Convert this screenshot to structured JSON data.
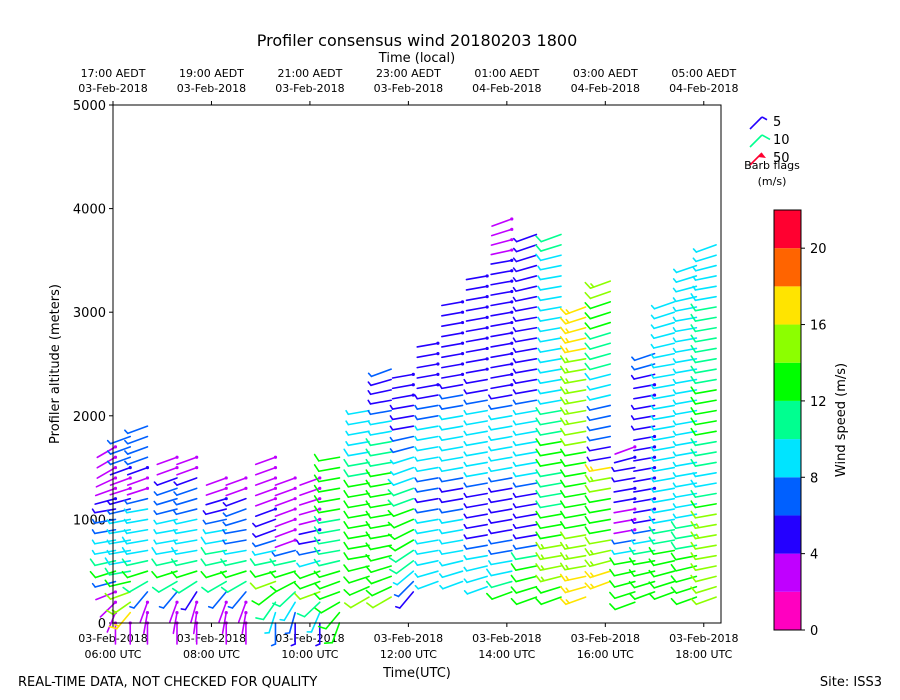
{
  "chart_data": {
    "type": "wind-barb",
    "title": "Profiler consensus wind 20180203 1800",
    "top_axis_label": "Time (local)",
    "top_ticks": [
      {
        "t": 6,
        "line1": "17:00 AEDT",
        "line2": "03-Feb-2018"
      },
      {
        "t": 8,
        "line1": "19:00 AEDT",
        "line2": "03-Feb-2018"
      },
      {
        "t": 10,
        "line1": "21:00 AEDT",
        "line2": "03-Feb-2018"
      },
      {
        "t": 12,
        "line1": "23:00 AEDT",
        "line2": "03-Feb-2018"
      },
      {
        "t": 14,
        "line1": "01:00 AEDT",
        "line2": "04-Feb-2018"
      },
      {
        "t": 16,
        "line1": "03:00 AEDT",
        "line2": "04-Feb-2018"
      },
      {
        "t": 18,
        "line1": "05:00 AEDT",
        "line2": "04-Feb-2018"
      }
    ],
    "bottom_axis_label": "Time(UTC)",
    "bottom_ticks": [
      {
        "t": 6,
        "line1": "03-Feb-2018",
        "line2": "06:00 UTC"
      },
      {
        "t": 8,
        "line1": "03-Feb-2018",
        "line2": "08:00 UTC"
      },
      {
        "t": 10,
        "line1": "03-Feb-2018",
        "line2": "10:00 UTC"
      },
      {
        "t": 12,
        "line1": "03-Feb-2018",
        "line2": "12:00 UTC"
      },
      {
        "t": 14,
        "line1": "03-Feb-2018",
        "line2": "14:00 UTC"
      },
      {
        "t": 16,
        "line1": "03-Feb-2018",
        "line2": "16:00 UTC"
      },
      {
        "t": 18,
        "line1": "03-Feb-2018",
        "line2": "18:00 UTC"
      }
    ],
    "xlim_utc_hours": [
      6,
      18.35
    ],
    "ylabel": "Profiler altitude (meters)",
    "ylim": [
      0,
      5000
    ],
    "y_ticks": [
      0,
      1000,
      2000,
      3000,
      4000,
      5000
    ],
    "colorbar": {
      "label": "Wind speed (m/s)",
      "min": 0,
      "max": 22,
      "ticks": [
        0,
        4,
        8,
        12,
        16,
        20
      ],
      "colors": [
        "#ff00c0",
        "#c000ff",
        "#2400ff",
        "#0060ff",
        "#00e4ff",
        "#00ff90",
        "#00ff00",
        "#8cff00",
        "#ffe400",
        "#ff6400",
        "#ff0030"
      ]
    },
    "legend": {
      "title_line1": "Barb flags",
      "title_line2": "(m/s)",
      "entries": [
        {
          "label": "5",
          "color": "#2400ff"
        },
        {
          "label": "10",
          "color": "#00ff90"
        },
        {
          "label": "50",
          "color": "#ff0030"
        }
      ]
    },
    "profiles": [
      {
        "t": 6.05,
        "top": 1750,
        "spd": [
          [
            0,
            180,
            2
          ],
          [
            350,
            260,
            2.5
          ],
          [
            450,
            250,
            13
          ],
          [
            650,
            260,
            10
          ],
          [
            1100,
            260,
            5
          ],
          [
            1500,
            240,
            2
          ]
        ]
      },
      {
        "t": 6.35,
        "top": 1800,
        "spd": [
          [
            0,
            180,
            2
          ],
          [
            100,
            220,
            16
          ],
          [
            300,
            250,
            14
          ],
          [
            450,
            260,
            12
          ],
          [
            650,
            260,
            9
          ],
          [
            950,
            260,
            9
          ],
          [
            1400,
            250,
            2
          ],
          [
            1600,
            250,
            6
          ]
        ]
      },
      {
        "t": 6.7,
        "top": 1900,
        "spd": [
          [
            0,
            180,
            2
          ],
          [
            200,
            200,
            2.5
          ],
          [
            450,
            250,
            13
          ],
          [
            650,
            260,
            10
          ],
          [
            1100,
            260,
            9
          ],
          [
            1350,
            250,
            2
          ],
          [
            1600,
            250,
            6
          ]
        ]
      },
      {
        "t": 7.3,
        "top": 1650,
        "spd": [
          [
            0,
            180,
            2
          ],
          [
            200,
            200,
            2.5
          ],
          [
            450,
            250,
            14
          ],
          [
            650,
            260,
            10
          ],
          [
            900,
            260,
            9
          ],
          [
            1350,
            250,
            6
          ],
          [
            1550,
            250,
            2
          ]
        ]
      },
      {
        "t": 7.7,
        "top": 1650,
        "spd": [
          [
            0,
            180,
            2
          ],
          [
            250,
            200,
            2.5
          ],
          [
            450,
            250,
            13
          ],
          [
            650,
            260,
            10
          ],
          [
            900,
            260,
            9
          ],
          [
            1350,
            250,
            6
          ],
          [
            1550,
            250,
            2
          ]
        ]
      },
      {
        "t": 8.3,
        "top": 1450,
        "spd": [
          [
            0,
            180,
            2
          ],
          [
            200,
            200,
            2.5
          ],
          [
            450,
            250,
            13
          ],
          [
            650,
            260,
            11
          ],
          [
            900,
            260,
            9
          ],
          [
            1350,
            250,
            2
          ]
        ]
      },
      {
        "t": 8.7,
        "top": 1450,
        "spd": [
          [
            0,
            180,
            2
          ],
          [
            200,
            200,
            2.5
          ],
          [
            450,
            250,
            13
          ],
          [
            650,
            260,
            10
          ],
          [
            900,
            260,
            6
          ],
          [
            1050,
            250,
            8
          ],
          [
            1350,
            250,
            2
          ]
        ]
      },
      {
        "t": 9.3,
        "top": 1600,
        "spd": [
          [
            0,
            180,
            6
          ],
          [
            400,
            250,
            14
          ],
          [
            650,
            260,
            10
          ],
          [
            850,
            250,
            6
          ],
          [
            1350,
            250,
            2
          ]
        ]
      },
      {
        "t": 9.7,
        "top": 1450,
        "spd": [
          [
            0,
            180,
            5
          ],
          [
            450,
            250,
            14
          ],
          [
            650,
            260,
            10
          ],
          [
            750,
            250,
            2
          ],
          [
            1350,
            250,
            2
          ]
        ]
      },
      {
        "t": 10.2,
        "top": 1450,
        "spd": [
          [
            0,
            180,
            5
          ],
          [
            300,
            250,
            14
          ],
          [
            500,
            250,
            12
          ],
          [
            750,
            260,
            5
          ],
          [
            1350,
            250,
            2
          ]
        ]
      },
      {
        "t": 10.6,
        "top": 1600,
        "spd": [
          [
            0,
            200,
            13
          ],
          [
            250,
            250,
            14
          ],
          [
            400,
            250,
            13
          ],
          [
            700,
            260,
            11
          ],
          [
            1350,
            260,
            13
          ],
          [
            1500,
            260,
            12
          ]
        ]
      },
      {
        "t": 11.2,
        "top": 2100,
        "spd": [
          [
            250,
            240,
            14
          ],
          [
            400,
            250,
            13
          ],
          [
            650,
            260,
            12
          ],
          [
            900,
            260,
            13
          ],
          [
            1400,
            260,
            12
          ],
          [
            1700,
            260,
            9
          ],
          [
            2000,
            260,
            9
          ]
        ]
      },
      {
        "t": 11.65,
        "top": 2450,
        "spd": [
          [
            250,
            240,
            14
          ],
          [
            450,
            250,
            13
          ],
          [
            800,
            260,
            13
          ],
          [
            1100,
            260,
            13
          ],
          [
            1500,
            260,
            12
          ],
          [
            1900,
            260,
            9
          ],
          [
            2200,
            260,
            5
          ],
          [
            2450,
            250,
            6
          ]
        ]
      },
      {
        "t": 12.1,
        "top": 2450,
        "spd": [
          [
            300,
            220,
            5
          ],
          [
            500,
            230,
            9
          ],
          [
            800,
            240,
            13
          ],
          [
            1100,
            250,
            12
          ],
          [
            1500,
            250,
            9
          ],
          [
            1900,
            260,
            5
          ],
          [
            2300,
            260,
            4
          ]
        ]
      },
      {
        "t": 12.6,
        "top": 2700,
        "spd": [
          [
            400,
            250,
            9
          ],
          [
            650,
            260,
            9
          ],
          [
            1000,
            260,
            9
          ],
          [
            1200,
            260,
            5
          ],
          [
            1500,
            260,
            9
          ],
          [
            1900,
            260,
            9
          ],
          [
            2300,
            260,
            4
          ],
          [
            2700,
            260,
            4
          ]
        ]
      },
      {
        "t": 13.1,
        "top": 3150,
        "spd": [
          [
            400,
            250,
            9
          ],
          [
            700,
            260,
            9
          ],
          [
            1000,
            260,
            9
          ],
          [
            1250,
            260,
            5
          ],
          [
            1500,
            260,
            9
          ],
          [
            2000,
            260,
            9
          ],
          [
            2400,
            260,
            4
          ],
          [
            3150,
            260,
            4
          ]
        ]
      },
      {
        "t": 13.6,
        "top": 3400,
        "spd": [
          [
            350,
            250,
            9
          ],
          [
            650,
            260,
            9
          ],
          [
            900,
            260,
            5
          ],
          [
            1300,
            260,
            5
          ],
          [
            1500,
            260,
            9
          ],
          [
            2000,
            260,
            9
          ],
          [
            2400,
            260,
            4
          ],
          [
            3400,
            260,
            4
          ]
        ]
      },
      {
        "t": 14.1,
        "top": 3900,
        "spd": [
          [
            300,
            250,
            13
          ],
          [
            550,
            260,
            9
          ],
          [
            900,
            260,
            5
          ],
          [
            1300,
            260,
            5
          ],
          [
            1500,
            260,
            9
          ],
          [
            2000,
            260,
            9
          ],
          [
            2300,
            260,
            4
          ],
          [
            3500,
            260,
            4
          ],
          [
            3900,
            250,
            3
          ]
        ]
      },
      {
        "t": 14.6,
        "top": 3750,
        "spd": [
          [
            250,
            250,
            13
          ],
          [
            600,
            260,
            12
          ],
          [
            800,
            260,
            5
          ],
          [
            1250,
            260,
            5
          ],
          [
            1500,
            260,
            9
          ],
          [
            2000,
            260,
            9
          ],
          [
            2300,
            260,
            5
          ],
          [
            3000,
            260,
            5
          ],
          [
            3750,
            250,
            5
          ]
        ]
      },
      {
        "t": 15.1,
        "top": 3750,
        "spd": [
          [
            250,
            250,
            13
          ],
          [
            600,
            260,
            16
          ],
          [
            900,
            260,
            13
          ],
          [
            1300,
            260,
            11
          ],
          [
            1700,
            260,
            13
          ],
          [
            2200,
            260,
            9
          ],
          [
            2800,
            260,
            9
          ],
          [
            3400,
            260,
            9
          ],
          [
            3750,
            250,
            11
          ]
        ]
      },
      {
        "t": 15.6,
        "top": 3050,
        "spd": [
          [
            250,
            250,
            17
          ],
          [
            500,
            260,
            16
          ],
          [
            900,
            260,
            14
          ],
          [
            1300,
            260,
            13
          ],
          [
            1700,
            260,
            14
          ],
          [
            2100,
            260,
            15
          ],
          [
            2600,
            260,
            16
          ],
          [
            3050,
            250,
            16
          ]
        ]
      },
      {
        "t": 16.1,
        "top": 3350,
        "spd": [
          [
            400,
            250,
            17
          ],
          [
            800,
            260,
            14
          ],
          [
            1200,
            260,
            13
          ],
          [
            1500,
            260,
            16
          ],
          [
            1600,
            260,
            5
          ],
          [
            3350,
            250,
            15
          ]
        ]
      },
      {
        "t": 16.6,
        "top": 1700,
        "spd": [
          [
            200,
            250,
            13
          ],
          [
            600,
            260,
            12
          ],
          [
            900,
            260,
            3
          ],
          [
            1500,
            260,
            5
          ],
          [
            1700,
            250,
            3
          ]
        ]
      },
      {
        "t": 17.0,
        "top": 2650,
        "spd": [
          [
            300,
            250,
            13
          ],
          [
            600,
            260,
            13
          ],
          [
            1100,
            260,
            4
          ],
          [
            1700,
            260,
            4
          ],
          [
            2000,
            260,
            5
          ],
          [
            2300,
            260,
            4
          ],
          [
            2650,
            250,
            8
          ]
        ]
      },
      {
        "t": 17.4,
        "top": 3150,
        "spd": [
          [
            300,
            250,
            13
          ],
          [
            700,
            260,
            12
          ],
          [
            1100,
            260,
            9
          ],
          [
            1500,
            260,
            9
          ],
          [
            2000,
            260,
            9
          ],
          [
            2500,
            260,
            9
          ],
          [
            3150,
            250,
            9
          ]
        ]
      },
      {
        "t": 17.85,
        "top": 3500,
        "spd": [
          [
            250,
            250,
            13
          ],
          [
            700,
            260,
            12
          ],
          [
            1100,
            260,
            9
          ],
          [
            1500,
            260,
            9
          ],
          [
            2000,
            260,
            9
          ],
          [
            2500,
            260,
            9
          ],
          [
            3000,
            260,
            9
          ],
          [
            3500,
            250,
            9
          ]
        ]
      },
      {
        "t": 18.25,
        "top": 3650,
        "spd": [
          [
            250,
            250,
            14
          ],
          [
            600,
            260,
            14
          ],
          [
            1000,
            260,
            15
          ],
          [
            1400,
            260,
            9
          ],
          [
            1800,
            260,
            12
          ],
          [
            2300,
            260,
            12
          ],
          [
            2800,
            260,
            11
          ],
          [
            3300,
            260,
            9
          ],
          [
            3650,
            250,
            9
          ]
        ]
      }
    ]
  },
  "footer": {
    "left": "REAL-TIME DATA, NOT CHECKED FOR QUALITY",
    "right": "Site: ISS3"
  }
}
